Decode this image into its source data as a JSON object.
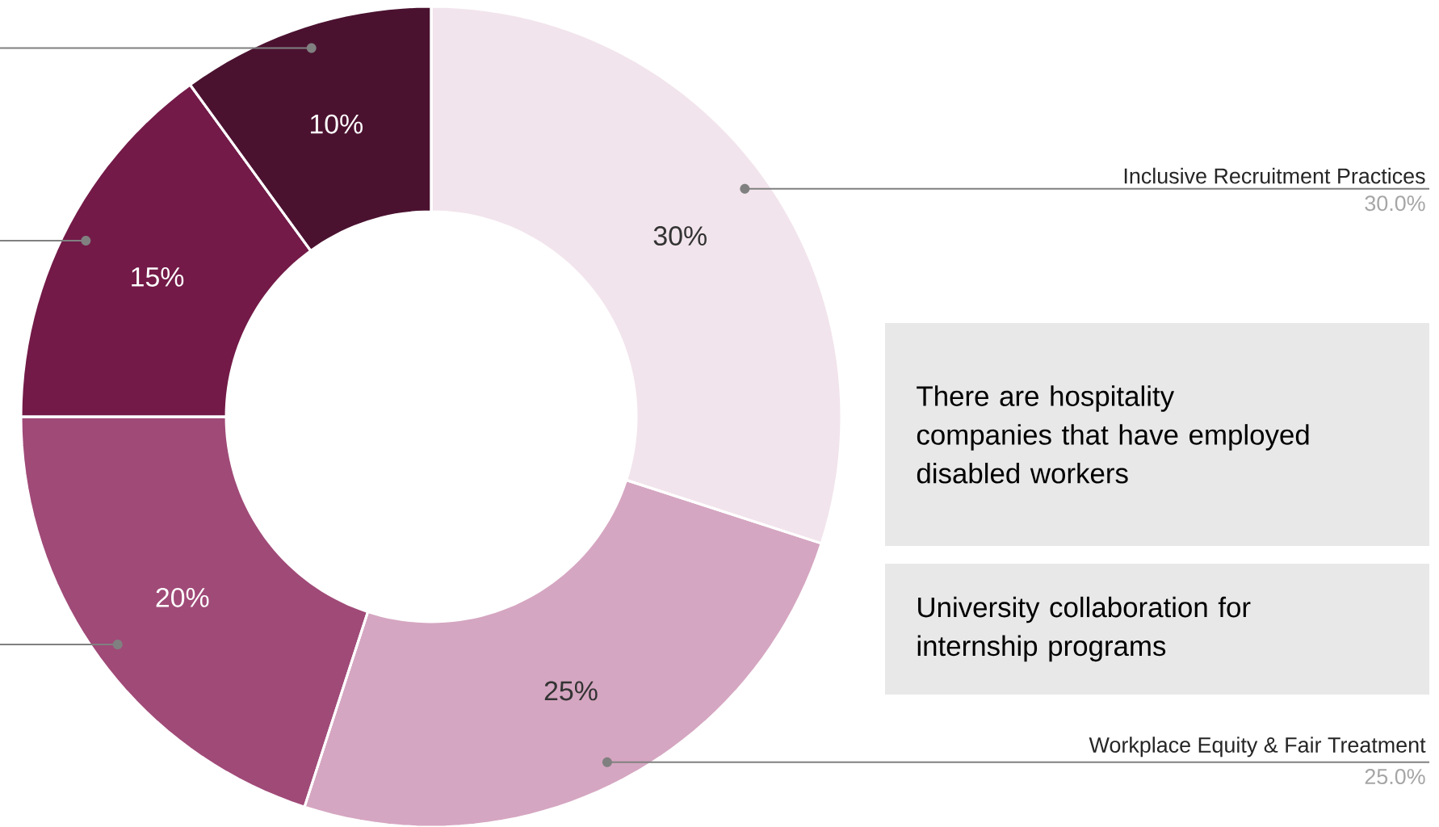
{
  "chart_data": {
    "type": "donut",
    "categories": [
      "Inclusive Recruitment Practices",
      "Workplace Equity & Fair Treatment",
      null,
      null,
      null
    ],
    "values": [
      30,
      25,
      20,
      15,
      10
    ],
    "colors": [
      "#f2e4ec",
      "#d5a6c1",
      "#a04a78",
      "#731a48",
      "#4b1230"
    ],
    "value_labels": [
      "30%",
      "25%",
      "20%",
      "15%",
      "10%"
    ],
    "annotations": [
      "There are hospitality companies that have employed disabled workers",
      "University collaboration for internship programs",
      "30.0%",
      "25.0%"
    ]
  }
}
